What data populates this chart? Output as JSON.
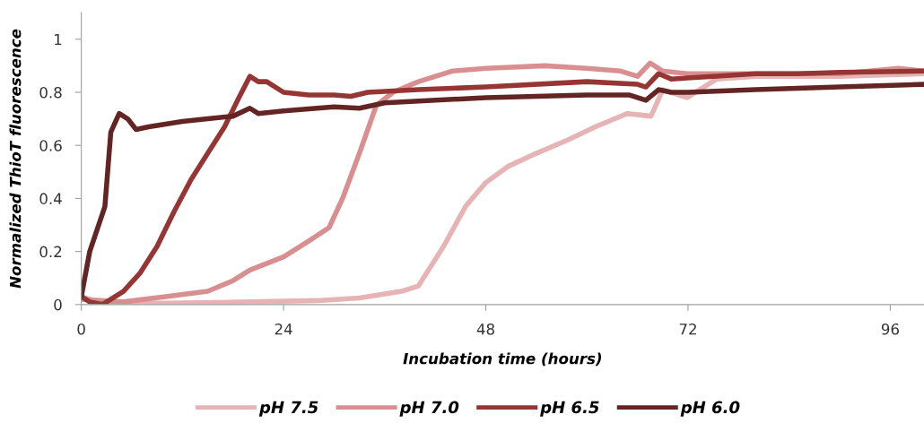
{
  "chart_data": {
    "type": "line",
    "xlabel": "Incubation time (hours)",
    "ylabel": "Normalized ThioT fluorescence",
    "xlim": [
      0,
      100
    ],
    "xticks": [
      0,
      24,
      48,
      72,
      96
    ],
    "ylim": [
      0,
      1.1
    ],
    "yticks": [
      0,
      0.2,
      0.4,
      0.6,
      0.8,
      1
    ],
    "grid": false,
    "legend": "bottom",
    "marker": "none",
    "line_style": "solid",
    "series": [
      {
        "name": "pH 7.5",
        "color": "#e6b4b4",
        "x": [
          0,
          2,
          5,
          10,
          20,
          28,
          33,
          36,
          38,
          40,
          41,
          43,
          45.6,
          48,
          50.6,
          54,
          57.7,
          61,
          64.8,
          67.6,
          69,
          71.9,
          75.4,
          80,
          90,
          100
        ],
        "values": [
          0.03,
          0.01,
          0.005,
          0.005,
          0.01,
          0.015,
          0.025,
          0.04,
          0.05,
          0.07,
          0.12,
          0.22,
          0.37,
          0.46,
          0.52,
          0.57,
          0.62,
          0.67,
          0.72,
          0.71,
          0.81,
          0.78,
          0.85,
          0.86,
          0.86,
          0.87
        ]
      },
      {
        "name": "pH 7.0",
        "color": "#d98f8f",
        "x": [
          0,
          5,
          10,
          15,
          18,
          20,
          24,
          27,
          29.4,
          31,
          33,
          35,
          37,
          40,
          44,
          48,
          55,
          60,
          64,
          66,
          67.5,
          69,
          72,
          80,
          90,
          97,
          100
        ],
        "values": [
          0.02,
          0.01,
          0.03,
          0.05,
          0.09,
          0.13,
          0.18,
          0.24,
          0.29,
          0.4,
          0.57,
          0.75,
          0.8,
          0.84,
          0.88,
          0.89,
          0.9,
          0.89,
          0.88,
          0.86,
          0.91,
          0.88,
          0.87,
          0.87,
          0.87,
          0.89,
          0.88
        ]
      },
      {
        "name": "pH 6.5",
        "color": "#963634",
        "x": [
          0,
          1,
          2.5,
          5,
          7,
          9,
          11,
          13,
          15,
          17,
          18.7,
          20,
          21,
          22,
          24,
          27,
          30,
          32,
          34,
          40,
          48,
          60,
          66,
          67,
          68.5,
          70,
          75,
          80,
          85,
          90,
          100
        ],
        "values": [
          0.03,
          0.01,
          0.0,
          0.05,
          0.12,
          0.22,
          0.35,
          0.47,
          0.57,
          0.67,
          0.78,
          0.86,
          0.84,
          0.84,
          0.8,
          0.79,
          0.79,
          0.785,
          0.8,
          0.81,
          0.82,
          0.84,
          0.83,
          0.82,
          0.87,
          0.85,
          0.86,
          0.87,
          0.87,
          0.875,
          0.88
        ]
      },
      {
        "name": "pH 6.0",
        "color": "#632523",
        "x": [
          0,
          1,
          2.8,
          3.5,
          4.5,
          5.5,
          6.5,
          8,
          10,
          12,
          15,
          18,
          20,
          21,
          24,
          30,
          33,
          36,
          48,
          60,
          65,
          67,
          68.5,
          70,
          72,
          80,
          90,
          100
        ],
        "values": [
          0.03,
          0.2,
          0.37,
          0.65,
          0.72,
          0.7,
          0.66,
          0.67,
          0.68,
          0.69,
          0.7,
          0.71,
          0.74,
          0.72,
          0.73,
          0.745,
          0.74,
          0.76,
          0.78,
          0.79,
          0.79,
          0.77,
          0.81,
          0.8,
          0.8,
          0.81,
          0.82,
          0.83
        ]
      }
    ]
  }
}
